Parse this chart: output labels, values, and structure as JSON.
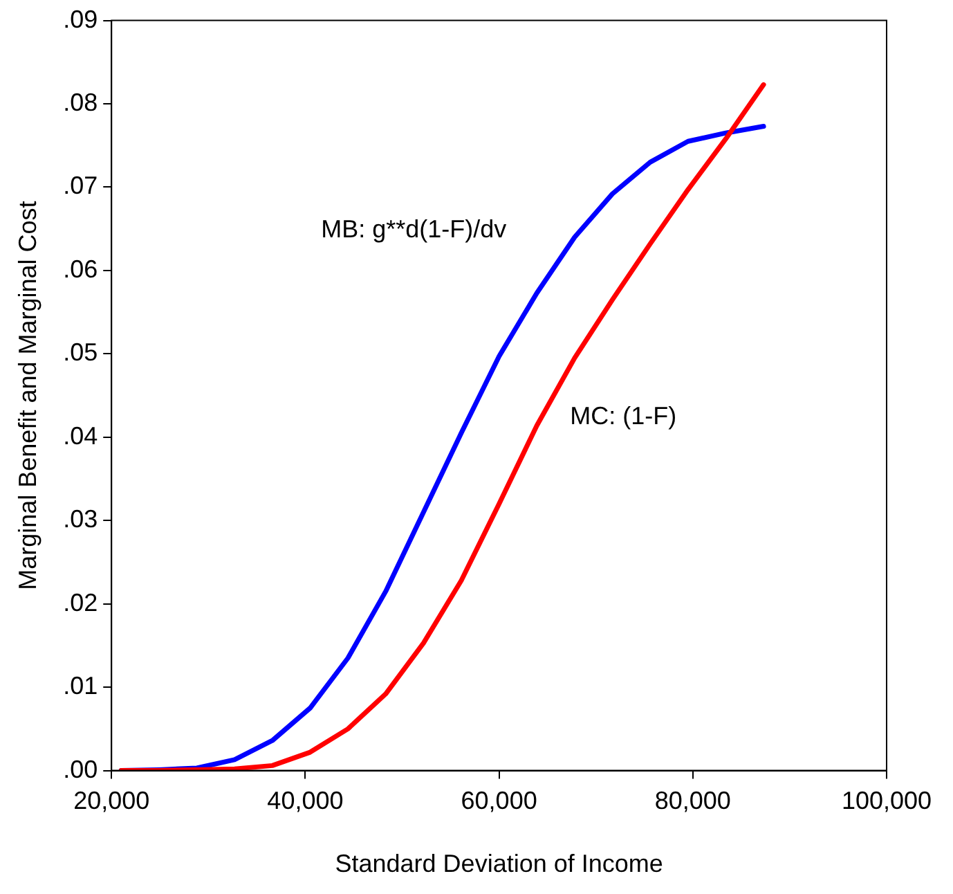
{
  "chart_data": {
    "type": "line",
    "xlabel": "Standard Deviation of Income",
    "ylabel": "Marginal Benefit and Marginal Cost",
    "x": [
      21000,
      24900,
      28800,
      32700,
      36600,
      40500,
      44400,
      48300,
      52200,
      56100,
      60000,
      63900,
      67800,
      71700,
      75600,
      79500,
      83400,
      87300
    ],
    "series": [
      {
        "name": "MB: g**d(1-F)/dv",
        "color": "#0000ff",
        "values": [
          0,
          0.0001,
          0.0003,
          0.0013,
          0.0036,
          0.0075,
          0.0135,
          0.0215,
          0.031,
          0.0405,
          0.0497,
          0.0573,
          0.064,
          0.0692,
          0.073,
          0.0755,
          0.0765,
          0.0773
        ]
      },
      {
        "name": "MC: (1-F)",
        "color": "#ff0000",
        "values": [
          0,
          0,
          0.0001,
          0.0002,
          0.0006,
          0.0022,
          0.005,
          0.0092,
          0.0153,
          0.0228,
          0.032,
          0.0414,
          0.0495,
          0.0565,
          0.0632,
          0.0697,
          0.0758,
          0.0823
        ]
      }
    ],
    "xlim": [
      20000,
      100000
    ],
    "xticks": [
      {
        "value": 20000,
        "label": "20,000"
      },
      {
        "value": 40000,
        "label": "40,000"
      },
      {
        "value": 60000,
        "label": "60,000"
      },
      {
        "value": 80000,
        "label": "80,000"
      },
      {
        "value": 100000,
        "label": "100,000"
      }
    ],
    "ylim": [
      0,
      0.09
    ],
    "yticks": [
      {
        "value": 0,
        "label": ".00"
      },
      {
        "value": 0.01,
        "label": ".01"
      },
      {
        "value": 0.02,
        "label": ".02"
      },
      {
        "value": 0.03,
        "label": ".03"
      },
      {
        "value": 0.04,
        "label": ".04"
      },
      {
        "value": 0.05,
        "label": ".05"
      },
      {
        "value": 0.06,
        "label": ".06"
      },
      {
        "value": 0.07,
        "label": ".07"
      },
      {
        "value": 0.08,
        "label": ".08"
      },
      {
        "value": 0.09,
        "label": ".09"
      }
    ],
    "grid": false,
    "legend": false,
    "marker": "none",
    "line_style": "solid"
  }
}
